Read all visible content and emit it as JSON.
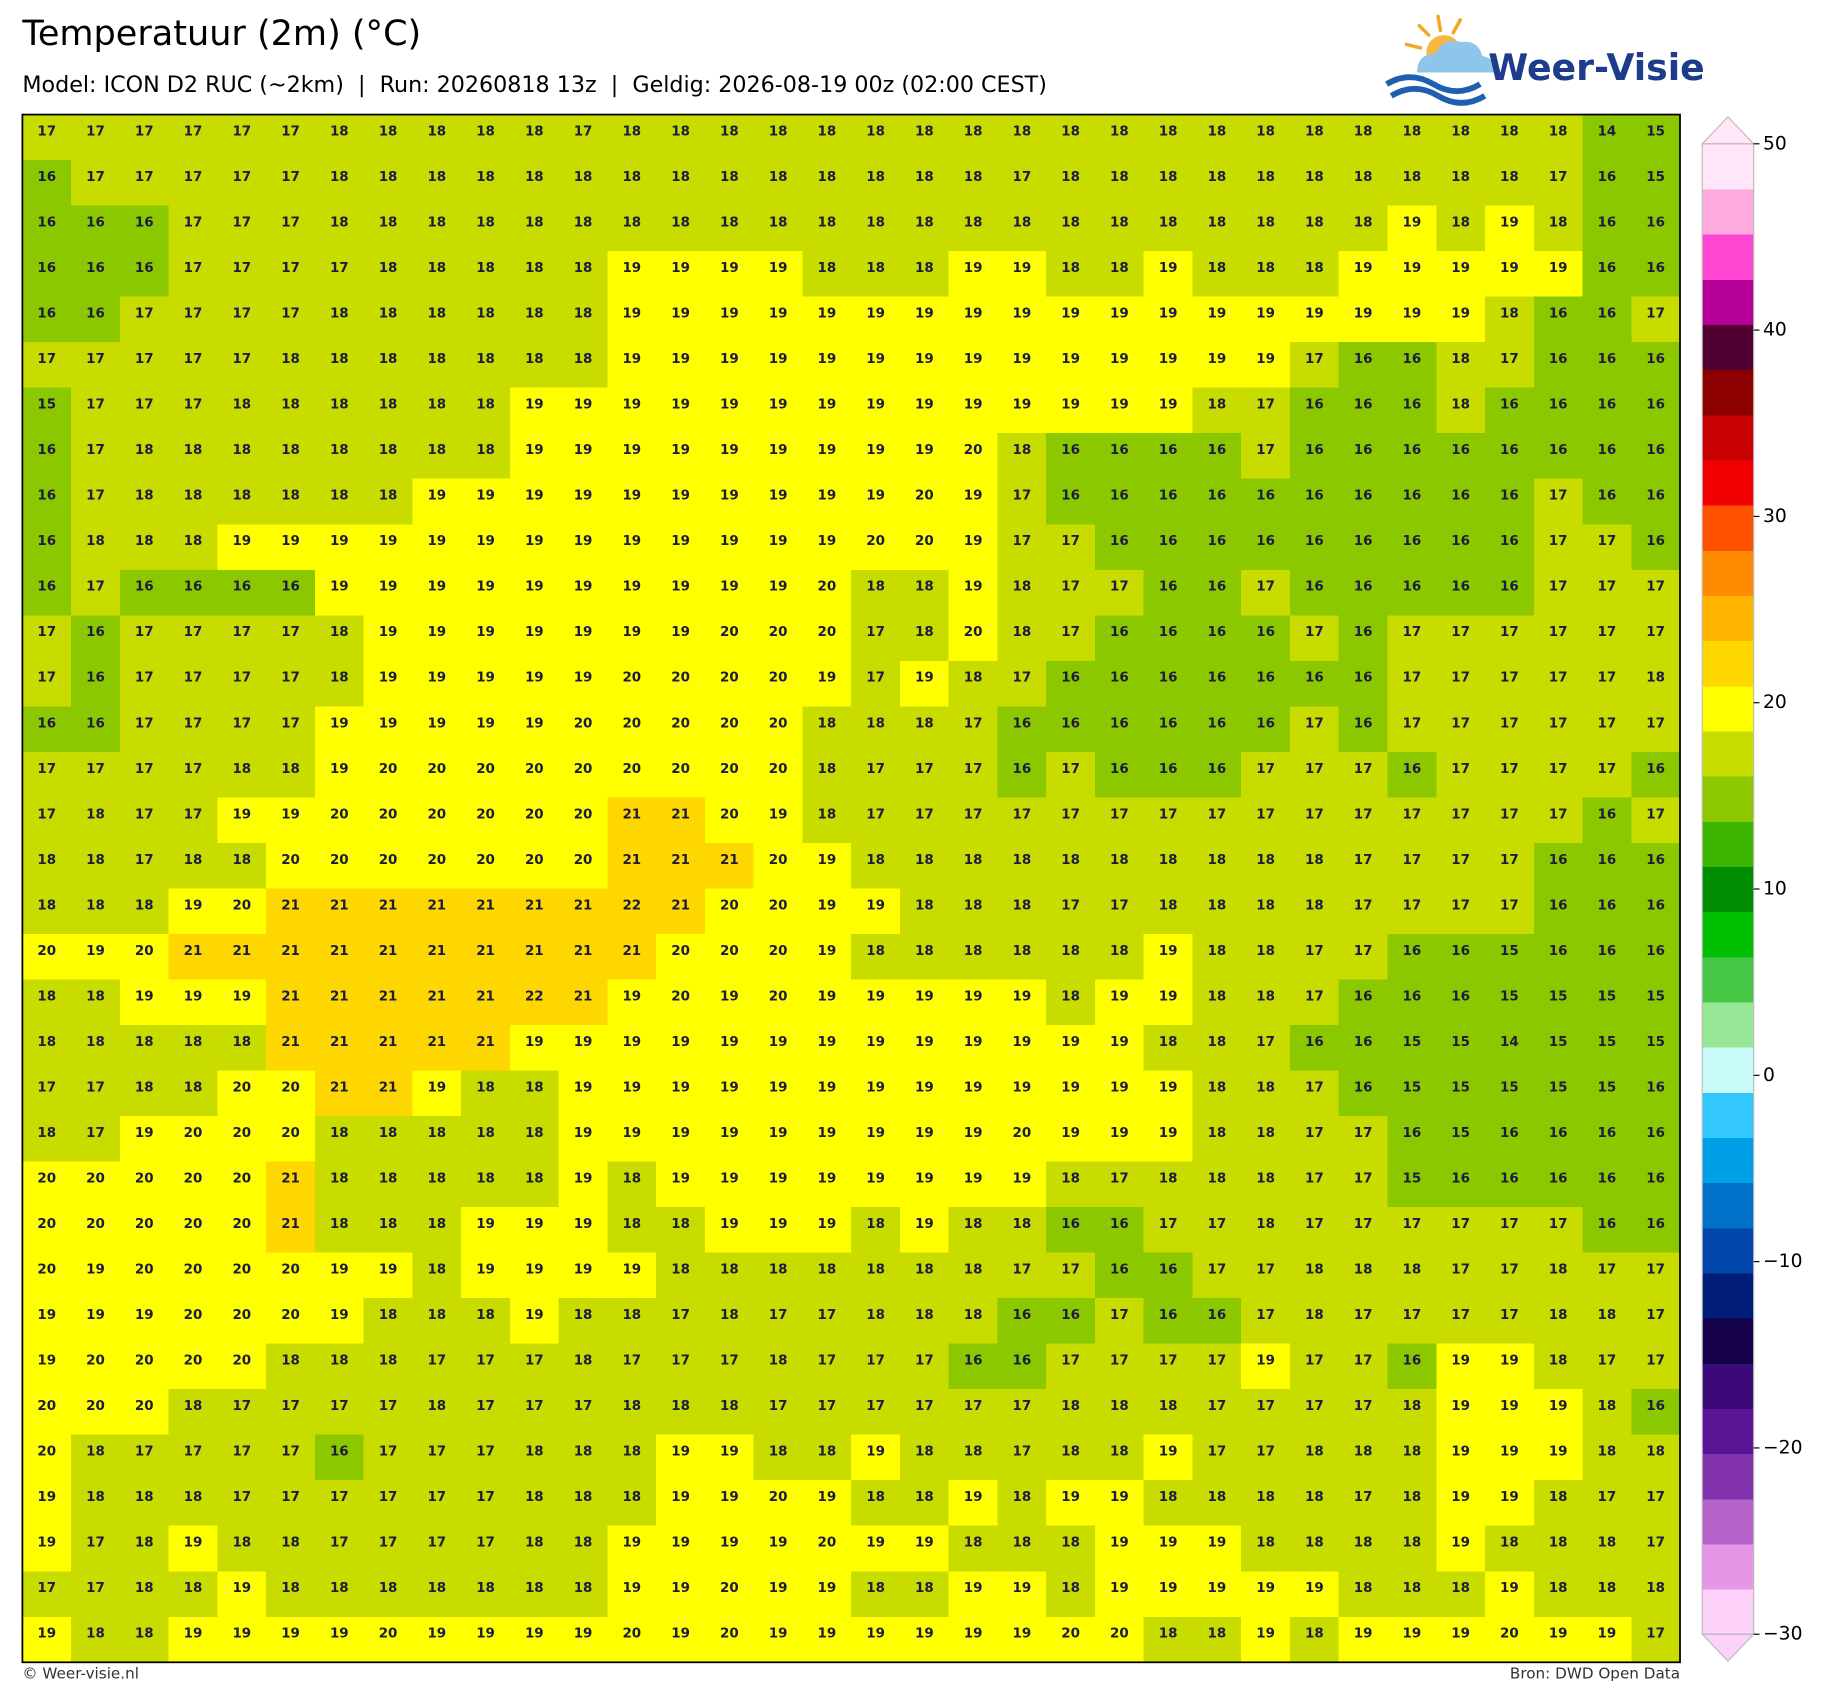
{
  "header": {
    "title": "Temperatuur (2m) (°C)",
    "subtitle": "Model: ICON D2 RUC (~2km)  |  Run: 20260818 13z  |  Geldig: 2026-08-19 00z (02:00 CEST)"
  },
  "logo": {
    "text": "Weer-Visie"
  },
  "map": {
    "values": [
      [
        17,
        17,
        17,
        17,
        17,
        17,
        18,
        18,
        18,
        18,
        18,
        17,
        18,
        18,
        18,
        18,
        18,
        18,
        18,
        18,
        18,
        18,
        18,
        18,
        18,
        18,
        18,
        18,
        18,
        18,
        18,
        18,
        14,
        15
      ],
      [
        16,
        17,
        17,
        17,
        17,
        17,
        18,
        18,
        18,
        18,
        18,
        18,
        18,
        18,
        18,
        18,
        18,
        18,
        18,
        18,
        17,
        18,
        18,
        18,
        18,
        18,
        18,
        18,
        18,
        18,
        18,
        17,
        16,
        15
      ],
      [
        16,
        16,
        16,
        17,
        17,
        17,
        18,
        18,
        18,
        18,
        18,
        18,
        18,
        18,
        18,
        18,
        18,
        18,
        18,
        18,
        18,
        18,
        18,
        18,
        18,
        18,
        18,
        18,
        19,
        18,
        19,
        18,
        16,
        16
      ],
      [
        16,
        16,
        16,
        17,
        17,
        17,
        17,
        18,
        18,
        18,
        18,
        18,
        19,
        19,
        19,
        19,
        18,
        18,
        18,
        19,
        19,
        18,
        18,
        19,
        18,
        18,
        18,
        19,
        19,
        19,
        19,
        19,
        16,
        16
      ],
      [
        16,
        16,
        17,
        17,
        17,
        17,
        18,
        18,
        18,
        18,
        18,
        18,
        19,
        19,
        19,
        19,
        19,
        19,
        19,
        19,
        19,
        19,
        19,
        19,
        19,
        19,
        19,
        19,
        19,
        19,
        18,
        16,
        16,
        17
      ],
      [
        17,
        17,
        17,
        17,
        17,
        18,
        18,
        18,
        18,
        18,
        18,
        18,
        19,
        19,
        19,
        19,
        19,
        19,
        19,
        19,
        19,
        19,
        19,
        19,
        19,
        19,
        17,
        16,
        16,
        18,
        17,
        16,
        16,
        16
      ],
      [
        15,
        17,
        17,
        17,
        18,
        18,
        18,
        18,
        18,
        18,
        19,
        19,
        19,
        19,
        19,
        19,
        19,
        19,
        19,
        19,
        19,
        19,
        19,
        19,
        18,
        17,
        16,
        16,
        16,
        18,
        16,
        16,
        16,
        16
      ],
      [
        16,
        17,
        18,
        18,
        18,
        18,
        18,
        18,
        18,
        18,
        19,
        19,
        19,
        19,
        19,
        19,
        19,
        19,
        19,
        20,
        18,
        16,
        16,
        16,
        16,
        17,
        16,
        16,
        16,
        16,
        16,
        16,
        16,
        16
      ],
      [
        16,
        17,
        18,
        18,
        18,
        18,
        18,
        18,
        19,
        19,
        19,
        19,
        19,
        19,
        19,
        19,
        19,
        19,
        20,
        19,
        17,
        16,
        16,
        16,
        16,
        16,
        16,
        16,
        16,
        16,
        16,
        17,
        16,
        16
      ],
      [
        16,
        18,
        18,
        18,
        19,
        19,
        19,
        19,
        19,
        19,
        19,
        19,
        19,
        19,
        19,
        19,
        19,
        20,
        20,
        19,
        17,
        17,
        16,
        16,
        16,
        16,
        16,
        16,
        16,
        16,
        16,
        17,
        17,
        16
      ],
      [
        16,
        17,
        16,
        16,
        16,
        16,
        19,
        19,
        19,
        19,
        19,
        19,
        19,
        19,
        19,
        19,
        20,
        18,
        18,
        19,
        18,
        17,
        17,
        16,
        16,
        17,
        16,
        16,
        16,
        16,
        16,
        17,
        17,
        17
      ],
      [
        17,
        16,
        17,
        17,
        17,
        17,
        18,
        19,
        19,
        19,
        19,
        19,
        19,
        19,
        20,
        20,
        20,
        17,
        18,
        20,
        18,
        17,
        16,
        16,
        16,
        16,
        17,
        16,
        17,
        17,
        17,
        17,
        17,
        17
      ],
      [
        17,
        16,
        17,
        17,
        17,
        17,
        18,
        19,
        19,
        19,
        19,
        19,
        20,
        20,
        20,
        20,
        19,
        17,
        19,
        18,
        17,
        16,
        16,
        16,
        16,
        16,
        16,
        16,
        17,
        17,
        17,
        17,
        17,
        18
      ],
      [
        16,
        16,
        17,
        17,
        17,
        17,
        19,
        19,
        19,
        19,
        19,
        20,
        20,
        20,
        20,
        20,
        18,
        18,
        18,
        17,
        16,
        16,
        16,
        16,
        16,
        16,
        17,
        16,
        17,
        17,
        17,
        17,
        17,
        17
      ],
      [
        17,
        17,
        17,
        17,
        18,
        18,
        19,
        20,
        20,
        20,
        20,
        20,
        20,
        20,
        20,
        20,
        18,
        17,
        17,
        17,
        16,
        17,
        16,
        16,
        16,
        17,
        17,
        17,
        16,
        17,
        17,
        17,
        17,
        16
      ],
      [
        17,
        18,
        17,
        17,
        19,
        19,
        20,
        20,
        20,
        20,
        20,
        20,
        21,
        21,
        20,
        19,
        18,
        17,
        17,
        17,
        17,
        17,
        17,
        17,
        17,
        17,
        17,
        17,
        17,
        17,
        17,
        17,
        16,
        17
      ],
      [
        18,
        18,
        17,
        18,
        18,
        20,
        20,
        20,
        20,
        20,
        20,
        20,
        21,
        21,
        21,
        20,
        19,
        18,
        18,
        18,
        18,
        18,
        18,
        18,
        18,
        18,
        18,
        17,
        17,
        17,
        17,
        16,
        16,
        16
      ],
      [
        18,
        18,
        18,
        19,
        20,
        21,
        21,
        21,
        21,
        21,
        21,
        21,
        22,
        21,
        20,
        20,
        19,
        19,
        18,
        18,
        18,
        17,
        17,
        18,
        18,
        18,
        18,
        17,
        17,
        17,
        17,
        16,
        16,
        16
      ],
      [
        20,
        19,
        20,
        21,
        21,
        21,
        21,
        21,
        21,
        21,
        21,
        21,
        21,
        20,
        20,
        20,
        19,
        18,
        18,
        18,
        18,
        18,
        18,
        19,
        18,
        18,
        17,
        17,
        16,
        16,
        15,
        16,
        16,
        16
      ],
      [
        18,
        18,
        19,
        19,
        19,
        21,
        21,
        21,
        21,
        21,
        22,
        21,
        19,
        20,
        19,
        20,
        19,
        19,
        19,
        19,
        19,
        18,
        19,
        19,
        18,
        18,
        17,
        16,
        16,
        16,
        15,
        15,
        15,
        15
      ],
      [
        18,
        18,
        18,
        18,
        18,
        21,
        21,
        21,
        21,
        21,
        19,
        19,
        19,
        19,
        19,
        19,
        19,
        19,
        19,
        19,
        19,
        19,
        19,
        18,
        18,
        17,
        16,
        16,
        15,
        15,
        14,
        15,
        15,
        15
      ],
      [
        17,
        17,
        18,
        18,
        20,
        20,
        21,
        21,
        19,
        18,
        18,
        19,
        19,
        19,
        19,
        19,
        19,
        19,
        19,
        19,
        19,
        19,
        19,
        19,
        18,
        18,
        17,
        16,
        15,
        15,
        15,
        15,
        15,
        16
      ],
      [
        18,
        17,
        19,
        20,
        20,
        20,
        18,
        18,
        18,
        18,
        18,
        19,
        19,
        19,
        19,
        19,
        19,
        19,
        19,
        19,
        20,
        19,
        19,
        19,
        18,
        18,
        17,
        17,
        16,
        15,
        16,
        16,
        16,
        16
      ],
      [
        20,
        20,
        20,
        20,
        20,
        21,
        18,
        18,
        18,
        18,
        18,
        19,
        18,
        19,
        19,
        19,
        19,
        19,
        19,
        19,
        19,
        18,
        17,
        18,
        18,
        18,
        17,
        17,
        15,
        16,
        16,
        16,
        16,
        16
      ],
      [
        20,
        20,
        20,
        20,
        20,
        21,
        18,
        18,
        18,
        19,
        19,
        19,
        18,
        18,
        19,
        19,
        19,
        18,
        19,
        18,
        18,
        16,
        16,
        17,
        17,
        18,
        17,
        17,
        17,
        17,
        17,
        17,
        16,
        16
      ],
      [
        20,
        19,
        20,
        20,
        20,
        20,
        19,
        19,
        18,
        19,
        19,
        19,
        19,
        18,
        18,
        18,
        18,
        18,
        18,
        18,
        17,
        17,
        16,
        16,
        17,
        17,
        18,
        18,
        18,
        17,
        17,
        18,
        17,
        17
      ],
      [
        19,
        19,
        19,
        20,
        20,
        20,
        19,
        18,
        18,
        18,
        19,
        18,
        18,
        17,
        18,
        17,
        17,
        18,
        18,
        18,
        16,
        16,
        17,
        16,
        16,
        17,
        18,
        17,
        17,
        17,
        17,
        18,
        18,
        17
      ],
      [
        19,
        20,
        20,
        20,
        20,
        18,
        18,
        18,
        17,
        17,
        17,
        18,
        17,
        17,
        17,
        18,
        17,
        17,
        17,
        16,
        16,
        17,
        17,
        17,
        17,
        19,
        17,
        17,
        16,
        19,
        19,
        18,
        17,
        17
      ],
      [
        20,
        20,
        20,
        18,
        17,
        17,
        17,
        17,
        18,
        17,
        17,
        17,
        18,
        18,
        18,
        17,
        17,
        17,
        17,
        17,
        17,
        18,
        18,
        18,
        17,
        17,
        17,
        17,
        18,
        19,
        19,
        19,
        18,
        16
      ],
      [
        20,
        18,
        17,
        17,
        17,
        17,
        16,
        17,
        17,
        17,
        18,
        18,
        18,
        19,
        19,
        18,
        18,
        19,
        18,
        18,
        17,
        18,
        18,
        19,
        17,
        17,
        18,
        18,
        18,
        19,
        19,
        19,
        18,
        18
      ],
      [
        19,
        18,
        18,
        18,
        17,
        17,
        17,
        17,
        17,
        17,
        18,
        18,
        18,
        19,
        19,
        20,
        19,
        18,
        18,
        19,
        18,
        19,
        19,
        18,
        18,
        18,
        18,
        17,
        18,
        19,
        19,
        18,
        17,
        17
      ],
      [
        19,
        17,
        18,
        19,
        18,
        18,
        17,
        17,
        17,
        17,
        18,
        18,
        19,
        19,
        19,
        19,
        20,
        19,
        19,
        18,
        18,
        18,
        19,
        19,
        19,
        18,
        18,
        18,
        18,
        19,
        18,
        18,
        18,
        17
      ],
      [
        17,
        17,
        18,
        18,
        19,
        18,
        18,
        18,
        18,
        18,
        18,
        18,
        19,
        19,
        20,
        19,
        19,
        18,
        18,
        19,
        19,
        18,
        19,
        19,
        19,
        19,
        19,
        18,
        18,
        18,
        19,
        18,
        18,
        18
      ],
      [
        19,
        18,
        18,
        19,
        19,
        19,
        19,
        20,
        19,
        19,
        19,
        19,
        20,
        19,
        20,
        19,
        19,
        19,
        19,
        19,
        19,
        20,
        20,
        18,
        18,
        19,
        18,
        19,
        19,
        19,
        20,
        19,
        19,
        17
      ]
    ]
  },
  "colorbar": {
    "lim": [
      -30,
      50
    ],
    "colors": [
      "#fcd2fa",
      "#e696e6",
      "#b464c8",
      "#8232aa",
      "#5a1496",
      "#3c0a78",
      "#14004b",
      "#001e78",
      "#0046aa",
      "#0070c8",
      "#00a0e6",
      "#32c8ff",
      "#c8fafa",
      "#96e696",
      "#46c846",
      "#00be00",
      "#008c00",
      "#3cb400",
      "#8cc800",
      "#c8dc00",
      "#ffff00",
      "#ffd700",
      "#ffb400",
      "#ff8c00",
      "#ff5000",
      "#f00000",
      "#c80000",
      "#8c0000",
      "#500032",
      "#b40096",
      "#ff46d2",
      "#ffaadc",
      "#ffe6f8"
    ],
    "ticks": [
      {
        "value": -30,
        "label": "−30"
      },
      {
        "value": -20,
        "label": "−20"
      },
      {
        "value": -10,
        "label": "−10"
      },
      0,
      10,
      20,
      30,
      40,
      50
    ]
  },
  "footer": {
    "left": "© Weer-visie.nl",
    "right": "Bron: DWD Open Data"
  }
}
